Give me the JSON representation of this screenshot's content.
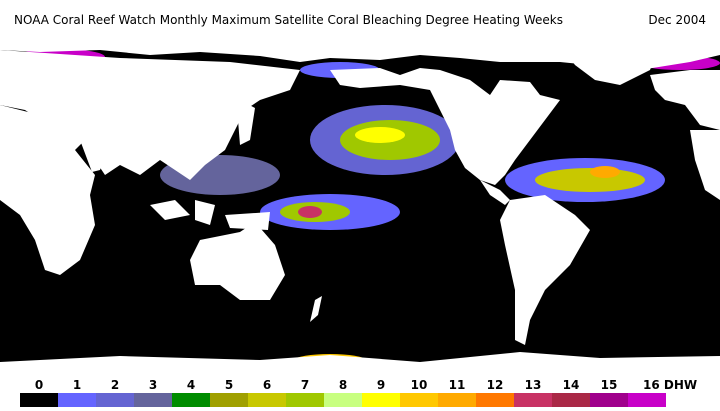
{
  "header": {
    "title": "NOAA Coral Reef Watch Monthly Maximum Satellite Coral Bleaching Degree Heating Weeks",
    "date": "Dec 2004"
  },
  "legend": {
    "unit": "DHW",
    "levels": [
      {
        "value": 0,
        "color": "#000000"
      },
      {
        "value": 1,
        "color": "#6464ff"
      },
      {
        "value": 2,
        "color": "#6464d2"
      },
      {
        "value": 3,
        "color": "#64649c"
      },
      {
        "value": 4,
        "color": "#008c00"
      },
      {
        "value": 5,
        "color": "#a0a000"
      },
      {
        "value": 6,
        "color": "#c8c800"
      },
      {
        "value": 7,
        "color": "#a0c800"
      },
      {
        "value": 8,
        "color": "#c8ff80"
      },
      {
        "value": 9,
        "color": "#ffff00"
      },
      {
        "value": 10,
        "color": "#ffc800"
      },
      {
        "value": 11,
        "color": "#ffaa00"
      },
      {
        "value": 12,
        "color": "#ff7800"
      },
      {
        "value": 13,
        "color": "#c83264"
      },
      {
        "value": 14,
        "color": "#aa2846"
      },
      {
        "value": 15,
        "color": "#a0008c"
      },
      {
        "value": 16,
        "color": "#c800c8"
      }
    ]
  }
}
